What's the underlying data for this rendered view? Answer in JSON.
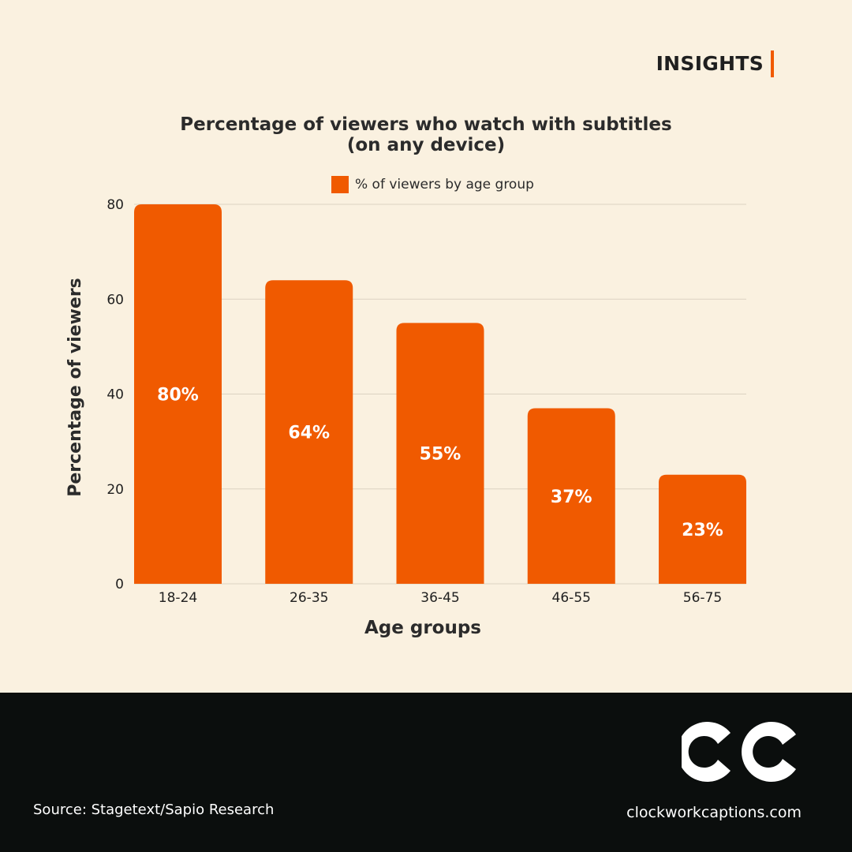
{
  "header": {
    "label": "INSIGHTS",
    "accent_color": "#f05a00"
  },
  "chart_data": {
    "type": "bar",
    "title_line1": "Percentage of viewers who watch with subtitles",
    "title_line2": "(on any device)",
    "categories": [
      "18-24",
      "26-35",
      "36-45",
      "46-55",
      "56-75"
    ],
    "series": [
      {
        "name": "% of viewers by age group",
        "values": [
          80,
          64,
          55,
          37,
          23
        ],
        "labels": [
          "80%",
          "64%",
          "55%",
          "37%",
          "23%"
        ],
        "color": "#f05a00"
      }
    ],
    "xlabel": "Age groups",
    "ylabel": "Percentage of viewers",
    "ylim": [
      0,
      80
    ],
    "yticks": [
      0,
      20,
      40,
      60,
      80
    ],
    "grid": true,
    "legend_position": "top-center"
  },
  "footer": {
    "source": "Source: Stagetext/Sapio Research",
    "website": "clockworkcaptions.com",
    "logo_icon": "cc-logo-icon"
  },
  "colors": {
    "background": "#faf1e0",
    "footer_background": "#0b0e0d",
    "gridline": "#dcd2c2",
    "bar": "#f05a00"
  }
}
